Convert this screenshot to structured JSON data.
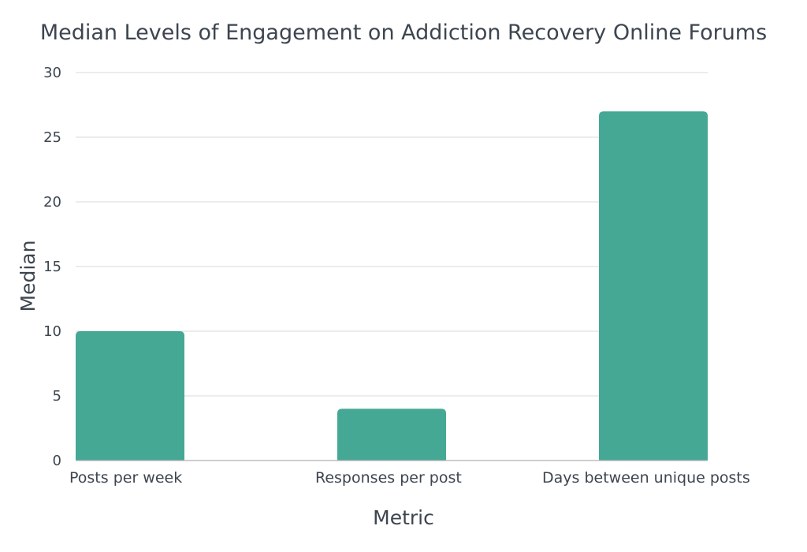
{
  "chart_data": {
    "type": "bar",
    "title": "Median Levels of Engagement on Addiction Recovery Online Forums",
    "xlabel": "Metric",
    "ylabel": "Median",
    "categories": [
      "Posts per week",
      "Responses per post",
      "Days between unique posts"
    ],
    "values": [
      10,
      4,
      27
    ],
    "ylim": [
      0,
      30
    ],
    "yticks": [
      0,
      5,
      10,
      15,
      20,
      25,
      30
    ],
    "grid": true,
    "legend": "none",
    "bar_color": "#44a894"
  }
}
